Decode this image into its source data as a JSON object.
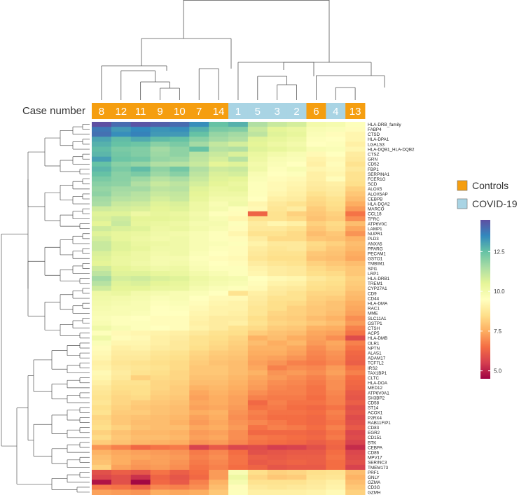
{
  "chart_data": {
    "type": "heatmap",
    "title": "",
    "header_label": "Case number",
    "columns": [
      "8",
      "12",
      "11",
      "9",
      "10",
      "7",
      "14",
      "1",
      "5",
      "3",
      "2",
      "6",
      "4",
      "13"
    ],
    "column_group": [
      "Controls",
      "Controls",
      "Controls",
      "Controls",
      "Controls",
      "Controls",
      "Controls",
      "COVID-19",
      "COVID-19",
      "COVID-19",
      "COVID-19",
      "Controls",
      "COVID-19",
      "Controls"
    ],
    "legend": [
      {
        "label": "Controls",
        "color": "#f59e10"
      },
      {
        "label": "COVID-19",
        "color": "#a9d4e4"
      }
    ],
    "colorbar": {
      "min": 4.5,
      "max": 14.5,
      "ticks": [
        5.0,
        7.5,
        10.0,
        12.5
      ],
      "tick_labels": [
        "5.0",
        "7.5",
        "10.0",
        "12.5"
      ]
    },
    "rows": [
      "HLA-DRB_family",
      "FABP4",
      "CTSD",
      "HLA-DPA1",
      "LGALS3",
      "HLA-DQB1_HLA-DQB2",
      "CTSZ",
      "GRN",
      "CD52",
      "FBP1",
      "SERPINA1",
      "FCER1G",
      "SCD",
      "ALOX5",
      "ALOX5AP",
      "CEBPB",
      "HLA-DQA2",
      "MARCO",
      "CCL18",
      "TFRC",
      "ATP6V0C",
      "LAMP1",
      "NUPR1",
      "PLD3",
      "ANXA5",
      "PPARG",
      "PECAM1",
      "GSTO1",
      "TMBIM1",
      "SPI1",
      "LRP1",
      "HLA-DRB1",
      "TREM1",
      "CYP27A1",
      "CD9",
      "CD44",
      "HLA-DMA",
      "RAC1",
      "MME",
      "SLC11A1",
      "GSTP1",
      "CTSH",
      "ACP5",
      "HLA-DMB",
      "OLR1",
      "NPTN",
      "ALAS1",
      "ADAM17",
      "TCF7L2",
      "IRS2",
      "TAX1BP1",
      "CLTC",
      "HLA-DOA",
      "MED12",
      "ATP6V0A1",
      "SH3BP2",
      "CD58",
      "ST14",
      "ACOX1",
      "P2RX4",
      "RAB11FIP1",
      "CD83",
      "EGR2",
      "CD151",
      "BTK",
      "CEBPA",
      "CD86",
      "MPV17",
      "SERINC3",
      "TMEM173",
      "PRF1",
      "GNLY",
      "GZMA",
      "CD3G",
      "GZMH"
    ],
    "values": [
      [
        14.5,
        14.0,
        14.4,
        14.2,
        14.0,
        13.4,
        12.5,
        12.8,
        11.4,
        11.0,
        10.8,
        10.0,
        9.9,
        9.6
      ],
      [
        13.8,
        13.2,
        13.5,
        13.3,
        13.4,
        12.8,
        12.2,
        12.1,
        11.0,
        10.5,
        10.3,
        9.8,
        9.7,
        9.4
      ],
      [
        13.9,
        13.4,
        13.6,
        13.2,
        13.2,
        12.5,
        11.8,
        11.6,
        11.2,
        10.6,
        10.4,
        9.7,
        9.4,
        9.2
      ],
      [
        13.0,
        12.6,
        12.9,
        12.6,
        12.5,
        12.0,
        11.6,
        11.4,
        10.6,
        10.4,
        10.2,
        9.6,
        9.5,
        9.2
      ],
      [
        12.8,
        12.5,
        12.4,
        12.0,
        12.2,
        11.6,
        11.1,
        10.8,
        10.5,
        10.2,
        10.0,
        9.5,
        9.6,
        9.0
      ],
      [
        12.6,
        12.2,
        12.1,
        11.6,
        11.9,
        12.5,
        11.3,
        11.4,
        10.6,
        10.4,
        10.2,
        9.8,
        9.7,
        9.2
      ],
      [
        12.7,
        12.3,
        12.1,
        11.7,
        11.9,
        11.3,
        11.0,
        10.7,
        10.3,
        10.0,
        9.8,
        9.3,
        9.5,
        8.9
      ],
      [
        13.1,
        12.4,
        12.3,
        11.8,
        11.7,
        11.2,
        10.8,
        11.3,
        10.2,
        9.8,
        9.7,
        9.1,
        9.3,
        8.8
      ],
      [
        12.5,
        12.0,
        11.8,
        11.4,
        11.3,
        11.0,
        10.5,
        10.6,
        10.0,
        9.7,
        9.5,
        9.0,
        9.4,
        8.6
      ],
      [
        12.7,
        12.2,
        12.6,
        11.9,
        12.3,
        11.4,
        10.9,
        11.0,
        10.1,
        9.6,
        9.8,
        9.2,
        9.3,
        8.8
      ],
      [
        12.5,
        12.0,
        12.2,
        11.7,
        12.0,
        11.2,
        10.7,
        10.8,
        9.8,
        9.5,
        9.6,
        9.0,
        9.2,
        8.6
      ],
      [
        12.2,
        12.0,
        11.7,
        11.3,
        11.5,
        11.0,
        10.6,
        10.5,
        9.7,
        9.4,
        9.3,
        9.0,
        9.4,
        8.6
      ],
      [
        12.0,
        11.9,
        11.4,
        11.0,
        11.2,
        10.8,
        10.5,
        10.3,
        9.6,
        9.3,
        9.2,
        8.9,
        9.0,
        8.5
      ],
      [
        11.8,
        11.6,
        11.6,
        11.2,
        11.3,
        10.6,
        10.3,
        10.4,
        9.6,
        9.3,
        9.1,
        8.8,
        8.9,
        8.2
      ],
      [
        11.9,
        11.5,
        11.3,
        11.0,
        11.1,
        10.5,
        10.2,
        10.2,
        9.6,
        9.2,
        9.0,
        8.6,
        8.8,
        8.0
      ],
      [
        11.6,
        11.3,
        11.2,
        10.8,
        11.0,
        10.4,
        10.0,
        10.0,
        9.5,
        9.0,
        8.9,
        8.4,
        8.6,
        7.8
      ],
      [
        11.5,
        11.0,
        10.9,
        10.6,
        10.7,
        10.2,
        9.8,
        10.1,
        9.2,
        8.8,
        8.6,
        8.3,
        8.5,
        7.5
      ],
      [
        10.9,
        10.8,
        10.7,
        10.5,
        10.6,
        10.2,
        9.9,
        9.6,
        9.3,
        8.7,
        8.9,
        8.1,
        8.4,
        7.2
      ],
      [
        10.6,
        10.6,
        10.2,
        10.4,
        10.3,
        10.0,
        9.6,
        9.4,
        6.3,
        8.6,
        8.2,
        8.0,
        8.2,
        6.6
      ],
      [
        10.7,
        10.9,
        10.5,
        10.5,
        10.4,
        10.1,
        9.8,
        9.2,
        8.6,
        8.6,
        8.4,
        7.9,
        8.1,
        7.0
      ],
      [
        10.5,
        11.0,
        10.4,
        10.3,
        10.2,
        9.9,
        9.9,
        9.6,
        8.9,
        9.2,
        9.0,
        8.2,
        8.4,
        7.8
      ],
      [
        10.9,
        10.7,
        10.6,
        10.2,
        10.3,
        10.0,
        9.8,
        9.4,
        8.8,
        8.8,
        8.6,
        8.0,
        8.3,
        7.4
      ],
      [
        10.6,
        10.4,
        10.3,
        10.1,
        10.0,
        9.8,
        9.6,
        9.2,
        8.6,
        8.6,
        8.4,
        7.8,
        8.0,
        7.1
      ],
      [
        10.8,
        10.4,
        10.2,
        10.0,
        10.1,
        9.8,
        9.6,
        9.4,
        8.9,
        8.4,
        8.4,
        8.0,
        7.9,
        7.6
      ],
      [
        11.0,
        10.6,
        10.3,
        10.2,
        10.1,
        9.8,
        9.7,
        9.6,
        9.1,
        8.8,
        8.8,
        8.4,
        8.2,
        7.8
      ],
      [
        11.0,
        10.6,
        10.4,
        10.1,
        10.1,
        9.8,
        9.6,
        9.4,
        8.9,
        8.7,
        8.8,
        8.3,
        8.0,
        7.7
      ],
      [
        10.7,
        10.4,
        10.2,
        10.0,
        10.1,
        9.7,
        9.5,
        9.4,
        8.8,
        8.6,
        8.6,
        8.0,
        7.9,
        7.5
      ],
      [
        10.6,
        10.3,
        10.2,
        9.9,
        9.9,
        9.6,
        9.4,
        9.3,
        8.7,
        8.5,
        8.5,
        7.9,
        7.8,
        7.4
      ],
      [
        10.5,
        10.3,
        10.1,
        9.9,
        10.0,
        9.7,
        9.5,
        9.4,
        8.9,
        8.7,
        8.6,
        8.2,
        8.0,
        7.8
      ],
      [
        10.9,
        10.5,
        10.3,
        10.1,
        10.2,
        9.8,
        9.6,
        9.6,
        9.1,
        8.9,
        8.8,
        8.4,
        8.2,
        8.0
      ],
      [
        11.2,
        10.6,
        10.6,
        10.4,
        10.3,
        10.0,
        9.8,
        9.6,
        9.2,
        8.9,
        8.8,
        8.5,
        8.4,
        8.0
      ],
      [
        11.6,
        10.8,
        10.9,
        10.7,
        10.6,
        10.2,
        10.0,
        9.9,
        9.5,
        9.3,
        9.2,
        8.8,
        8.6,
        8.2
      ],
      [
        11.3,
        10.6,
        10.7,
        10.5,
        10.4,
        10.1,
        9.9,
        9.8,
        9.4,
        9.1,
        9.0,
        8.6,
        8.5,
        8.1
      ],
      [
        10.9,
        10.5,
        10.5,
        10.3,
        10.3,
        9.9,
        9.7,
        9.6,
        9.3,
        8.9,
        8.8,
        8.5,
        8.4,
        8.0
      ],
      [
        10.2,
        10.3,
        10.0,
        9.9,
        9.8,
        9.7,
        9.5,
        8.6,
        9.0,
        8.8,
        8.6,
        8.3,
        8.3,
        7.8
      ],
      [
        10.1,
        10.0,
        9.9,
        9.7,
        9.8,
        9.5,
        9.3,
        9.3,
        8.9,
        8.6,
        8.6,
        8.2,
        8.1,
        7.7
      ],
      [
        10.0,
        9.9,
        9.8,
        9.6,
        9.7,
        9.4,
        9.2,
        9.1,
        8.8,
        8.5,
        8.4,
        8.1,
        7.9,
        7.5
      ],
      [
        9.9,
        9.8,
        9.8,
        9.5,
        9.6,
        9.3,
        9.1,
        9.1,
        8.7,
        8.5,
        8.2,
        8.0,
        7.9,
        7.4
      ],
      [
        9.8,
        9.8,
        9.7,
        9.5,
        9.5,
        9.2,
        9.1,
        9.0,
        8.7,
        8.3,
        8.2,
        8.0,
        7.8,
        7.3
      ],
      [
        9.7,
        9.6,
        9.5,
        9.4,
        9.4,
        9.1,
        8.9,
        8.9,
        8.5,
        8.2,
        8.1,
        7.8,
        7.6,
        7.0
      ],
      [
        9.8,
        9.6,
        9.6,
        9.4,
        9.4,
        9.0,
        8.9,
        9.0,
        8.6,
        8.3,
        8.2,
        8.0,
        7.8,
        7.2
      ],
      [
        10.1,
        9.8,
        9.6,
        9.5,
        9.4,
        9.1,
        8.9,
        8.6,
        8.4,
        8.1,
        8.0,
        7.6,
        7.5,
        6.8
      ],
      [
        9.6,
        9.3,
        9.2,
        9.1,
        9.0,
        8.8,
        8.6,
        8.5,
        8.1,
        7.9,
        7.8,
        7.4,
        7.3,
        6.6
      ],
      [
        10.1,
        9.4,
        9.3,
        9.0,
        8.9,
        8.6,
        8.5,
        8.3,
        7.6,
        7.8,
        7.5,
        7.3,
        7.0,
        5.8
      ],
      [
        9.7,
        9.2,
        9.2,
        9.0,
        8.8,
        8.6,
        8.4,
        8.2,
        7.8,
        7.5,
        7.7,
        7.2,
        7.4,
        6.8
      ],
      [
        9.4,
        9.0,
        9.1,
        8.9,
        8.8,
        8.5,
        8.3,
        8.1,
        7.6,
        7.6,
        7.4,
        7.0,
        7.3,
        6.6
      ],
      [
        9.3,
        8.9,
        8.9,
        8.7,
        8.6,
        8.3,
        8.1,
        8.0,
        7.5,
        7.5,
        7.3,
        6.9,
        7.1,
        6.4
      ],
      [
        9.2,
        8.8,
        8.8,
        8.6,
        8.5,
        8.2,
        8.0,
        7.9,
        7.4,
        7.3,
        7.1,
        6.8,
        7.0,
        6.3
      ],
      [
        9.0,
        8.7,
        8.6,
        8.5,
        8.4,
        8.1,
        7.9,
        7.8,
        7.3,
        7.1,
        6.8,
        6.7,
        6.9,
        6.2
      ],
      [
        9.1,
        8.8,
        8.7,
        8.6,
        8.4,
        8.0,
        8.0,
        7.8,
        7.4,
        6.8,
        7.0,
        6.9,
        7.2,
        6.6
      ],
      [
        9.3,
        8.9,
        8.6,
        8.5,
        8.3,
        8.0,
        8.0,
        7.8,
        7.6,
        7.1,
        7.2,
        7.0,
        7.3,
        6.8
      ],
      [
        9.2,
        8.8,
        8.2,
        8.4,
        8.3,
        7.9,
        7.9,
        7.7,
        7.4,
        7.2,
        7.0,
        6.8,
        7.1,
        6.5
      ],
      [
        9.0,
        8.6,
        8.6,
        8.3,
        8.2,
        7.8,
        7.8,
        7.6,
        7.3,
        7.0,
        6.9,
        6.7,
        7.0,
        6.4
      ],
      [
        8.8,
        8.5,
        8.5,
        8.3,
        8.1,
        7.6,
        7.7,
        7.5,
        7.2,
        6.9,
        6.8,
        6.6,
        7.0,
        6.3
      ],
      [
        8.7,
        8.4,
        8.5,
        8.2,
        8.1,
        7.4,
        7.6,
        7.4,
        7.0,
        6.8,
        6.8,
        6.6,
        6.9,
        6.1
      ],
      [
        8.6,
        8.3,
        8.4,
        8.1,
        8.0,
        7.3,
        7.5,
        7.3,
        6.8,
        6.7,
        6.7,
        6.5,
        6.8,
        6.0
      ],
      [
        8.7,
        8.3,
        8.1,
        8.0,
        7.9,
        7.4,
        7.5,
        7.3,
        6.4,
        6.8,
        6.6,
        6.6,
        6.8,
        6.2
      ],
      [
        8.5,
        8.2,
        8.0,
        7.9,
        7.8,
        7.3,
        7.4,
        7.2,
        6.6,
        6.7,
        6.5,
        6.4,
        6.6,
        5.9
      ],
      [
        8.6,
        8.1,
        8.1,
        7.9,
        7.8,
        7.5,
        7.6,
        7.1,
        6.8,
        6.6,
        6.6,
        6.5,
        6.8,
        6.0
      ],
      [
        8.3,
        8.0,
        7.9,
        7.8,
        7.7,
        7.3,
        7.5,
        7.0,
        6.7,
        6.5,
        6.5,
        6.4,
        6.7,
        5.8
      ],
      [
        8.4,
        8.0,
        7.8,
        7.8,
        7.6,
        7.2,
        7.4,
        7.1,
        6.9,
        6.7,
        6.5,
        6.4,
        6.6,
        5.9
      ],
      [
        8.5,
        8.2,
        7.9,
        7.8,
        7.8,
        7.4,
        7.5,
        7.2,
        6.6,
        6.8,
        6.7,
        6.5,
        6.8,
        6.1
      ],
      [
        8.2,
        7.9,
        7.7,
        7.7,
        7.6,
        7.2,
        7.3,
        7.0,
        6.4,
        6.4,
        6.4,
        6.3,
        6.6,
        5.7
      ],
      [
        8.4,
        8.0,
        7.8,
        7.8,
        7.7,
        7.3,
        7.4,
        7.0,
        6.7,
        6.6,
        6.5,
        6.4,
        6.7,
        5.8
      ],
      [
        8.1,
        7.9,
        7.7,
        7.6,
        7.5,
        7.1,
        7.2,
        6.9,
        6.6,
        6.5,
        6.4,
        6.2,
        6.4,
        5.6
      ],
      [
        7.1,
        6.8,
        6.4,
        6.6,
        6.7,
        5.6,
        6.1,
        5.7,
        5.8,
        5.5,
        5.6,
        5.9,
        6.3,
        5.2
      ],
      [
        7.6,
        7.4,
        7.3,
        7.2,
        7.1,
        6.7,
        6.9,
        6.5,
        5.9,
        6.0,
        6.1,
        6.1,
        6.5,
        5.7
      ],
      [
        7.8,
        7.5,
        7.4,
        7.3,
        7.2,
        6.8,
        7.0,
        6.6,
        6.2,
        6.1,
        6.2,
        6.2,
        6.6,
        5.8
      ],
      [
        7.9,
        7.5,
        7.2,
        7.3,
        7.1,
        6.7,
        6.9,
        6.6,
        6.1,
        6.2,
        6.3,
        6.2,
        6.5,
        5.9
      ],
      [
        8.2,
        7.3,
        7.1,
        7.2,
        7.0,
        6.6,
        6.8,
        6.5,
        6.3,
        6.0,
        6.1,
        6.1,
        6.5,
        5.6
      ],
      [
        5.9,
        6.2,
        6.0,
        6.6,
        6.2,
        6.5,
        7.2,
        9.8,
        8.5,
        8.2,
        8.3,
        8.5,
        8.6,
        7.8
      ],
      [
        5.7,
        5.9,
        5.3,
        6.3,
        6.0,
        6.4,
        7.2,
        10.2,
        8.3,
        8.0,
        8.1,
        8.6,
        8.7,
        7.6
      ],
      [
        4.8,
        5.9,
        4.6,
        6.4,
        6.1,
        6.8,
        7.6,
        9.9,
        8.6,
        8.6,
        8.6,
        8.8,
        9.0,
        7.8
      ],
      [
        6.7,
        6.6,
        6.3,
        6.9,
        6.8,
        7.0,
        7.8,
        9.4,
        8.8,
        8.7,
        8.8,
        8.9,
        9.1,
        8.0
      ],
      [
        7.3,
        7.2,
        7.1,
        7.5,
        7.4,
        7.5,
        8.0,
        9.6,
        9.0,
        9.0,
        9.0,
        9.1,
        9.3,
        8.2
      ]
    ]
  }
}
